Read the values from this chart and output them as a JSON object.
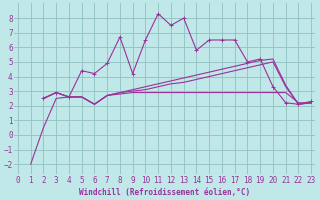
{
  "background_color": "#c0e8e8",
  "grid_color": "#90c0c0",
  "line_color": "#993399",
  "xlabel": "Windchill (Refroidissement éolien,°C)",
  "xlabel_fontsize": 5.5,
  "tick_fontsize": 5.5,
  "xlim": [
    -0.3,
    23.3
  ],
  "ylim": [
    -2.7,
    9.0
  ],
  "yticks": [
    -2,
    -1,
    0,
    1,
    2,
    3,
    4,
    5,
    6,
    7,
    8
  ],
  "xticks": [
    0,
    1,
    2,
    3,
    4,
    5,
    6,
    7,
    8,
    9,
    10,
    11,
    12,
    13,
    14,
    15,
    16,
    17,
    18,
    19,
    20,
    21,
    22,
    23
  ],
  "series": [
    {
      "x": [
        1,
        2,
        3,
        4,
        5,
        6,
        7,
        8,
        9,
        10,
        11,
        12,
        13,
        14,
        15,
        16,
        17,
        18,
        19,
        20,
        21,
        22,
        23
      ],
      "y": [
        -2.0,
        0.5,
        2.5,
        2.6,
        2.6,
        2.1,
        2.7,
        2.8,
        2.9,
        2.9,
        2.9,
        2.9,
        2.9,
        2.9,
        2.9,
        2.9,
        2.9,
        2.9,
        2.9,
        2.9,
        2.9,
        2.2,
        2.2
      ],
      "marker": null,
      "lw": 0.8
    },
    {
      "x": [
        2,
        3,
        4,
        5,
        6,
        7,
        8,
        9,
        10,
        11,
        12,
        13,
        14,
        15,
        16,
        17,
        18,
        19,
        20,
        21,
        22,
        23
      ],
      "y": [
        2.5,
        2.9,
        2.6,
        4.4,
        4.2,
        4.9,
        6.7,
        4.2,
        6.5,
        8.3,
        7.5,
        8.0,
        5.8,
        6.5,
        6.5,
        6.5,
        5.0,
        5.2,
        3.3,
        2.2,
        2.1,
        2.3
      ],
      "marker": "+",
      "lw": 0.8
    },
    {
      "x": [
        2,
        3,
        4,
        5,
        6,
        7,
        8,
        9,
        10,
        11,
        12,
        13,
        14,
        15,
        16,
        17,
        18,
        19,
        20,
        21,
        22,
        23
      ],
      "y": [
        2.5,
        2.9,
        2.6,
        2.6,
        2.1,
        2.7,
        2.9,
        3.1,
        3.3,
        3.5,
        3.7,
        3.9,
        4.1,
        4.3,
        4.5,
        4.7,
        4.9,
        5.1,
        5.2,
        3.4,
        2.1,
        2.2
      ],
      "marker": null,
      "lw": 0.8
    },
    {
      "x": [
        2,
        3,
        4,
        5,
        6,
        7,
        8,
        9,
        10,
        11,
        12,
        13,
        14,
        15,
        16,
        17,
        18,
        19,
        20,
        21,
        22,
        23
      ],
      "y": [
        2.5,
        2.9,
        2.6,
        2.6,
        2.1,
        2.7,
        2.9,
        3.0,
        3.1,
        3.3,
        3.5,
        3.6,
        3.8,
        4.0,
        4.2,
        4.4,
        4.6,
        4.8,
        5.0,
        3.3,
        2.1,
        2.2
      ],
      "marker": null,
      "lw": 0.8
    }
  ]
}
